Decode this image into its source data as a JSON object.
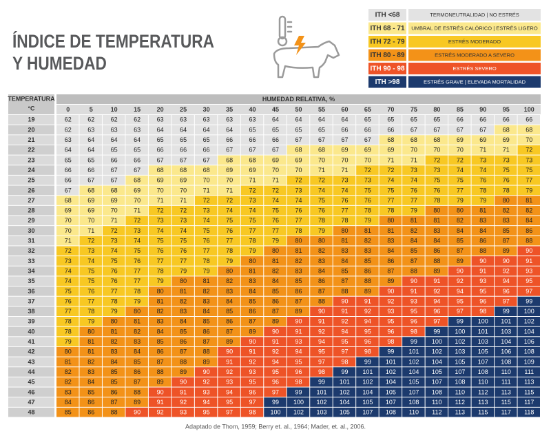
{
  "header": {
    "title_line1": "ÍNDICE DE TEMPERATURA",
    "title_line2": "Y HUMEDAD"
  },
  "legend": [
    {
      "label": "ITH <68",
      "description": "TERMONEUTRALIDAD | NO ESTRÉS",
      "color": "#e3e3e3"
    },
    {
      "label": "ITH 68 - 71",
      "description": "UMBRAL DE ESTRÉS CALÓRICO | ESTRÉS LIGERO",
      "color": "#fbe88c"
    },
    {
      "label": "ITH 72 - 79",
      "description": "ESTRÉS MODERADO",
      "color": "#f8c823"
    },
    {
      "label": "ITH 80 - 89",
      "description": "ESTRÉS MODERADO A SEVERO",
      "color": "#f39218"
    },
    {
      "label": "ITH 90 - 98",
      "description": "ESTRÉS SEVERO",
      "color": "#ee5327"
    },
    {
      "label": "ITH >98",
      "description": "ESTRÉS GRAVE | ELEVADA MORTALIDAD",
      "color": "#1c3a6d"
    }
  ],
  "table": {
    "row_header": "TEMPERATURA",
    "row_header_unit": "°C",
    "column_header": "HUMEDAD RELATIVA, %",
    "humidity": [
      0,
      5,
      10,
      15,
      20,
      25,
      30,
      35,
      40,
      45,
      50,
      55,
      60,
      65,
      70,
      75,
      80,
      85,
      90,
      95,
      100
    ],
    "rows": [
      {
        "temperature": 19,
        "values": [
          62,
          62,
          62,
          62,
          63,
          63,
          63,
          63,
          63,
          64,
          64,
          64,
          64,
          65,
          65,
          65,
          65,
          66,
          66,
          66,
          66
        ]
      },
      {
        "temperature": 20,
        "values": [
          62,
          63,
          63,
          63,
          64,
          64,
          64,
          64,
          65,
          65,
          65,
          65,
          66,
          66,
          66,
          67,
          67,
          67,
          67,
          68,
          68
        ]
      },
      {
        "temperature": 21,
        "values": [
          63,
          64,
          64,
          64,
          65,
          65,
          65,
          66,
          66,
          66,
          67,
          67,
          67,
          67,
          68,
          68,
          68,
          69,
          69,
          69,
          70
        ]
      },
      {
        "temperature": 22,
        "values": [
          64,
          64,
          65,
          65,
          66,
          66,
          66,
          67,
          67,
          67,
          68,
          68,
          69,
          69,
          69,
          70,
          70,
          70,
          71,
          71,
          72
        ]
      },
      {
        "temperature": 23,
        "values": [
          65,
          65,
          66,
          66,
          67,
          67,
          67,
          68,
          68,
          69,
          69,
          70,
          70,
          70,
          71,
          71,
          72,
          72,
          73,
          73,
          73
        ]
      },
      {
        "temperature": 24,
        "values": [
          66,
          66,
          67,
          67,
          68,
          68,
          68,
          69,
          69,
          70,
          70,
          71,
          71,
          72,
          72,
          73,
          73,
          74,
          74,
          75,
          75
        ]
      },
      {
        "temperature": 25,
        "values": [
          66,
          67,
          67,
          68,
          69,
          69,
          70,
          70,
          71,
          71,
          72,
          72,
          73,
          73,
          74,
          74,
          75,
          75,
          76,
          76,
          77
        ]
      },
      {
        "temperature": 26,
        "values": [
          67,
          68,
          68,
          69,
          70,
          70,
          71,
          71,
          72,
          72,
          73,
          74,
          74,
          75,
          75,
          76,
          76,
          77,
          78,
          78,
          79
        ]
      },
      {
        "temperature": 27,
        "values": [
          68,
          69,
          69,
          70,
          71,
          71,
          72,
          72,
          73,
          74,
          74,
          75,
          76,
          76,
          77,
          77,
          78,
          79,
          79,
          80,
          81
        ]
      },
      {
        "temperature": 28,
        "values": [
          69,
          69,
          70,
          71,
          72,
          72,
          73,
          74,
          74,
          75,
          76,
          76,
          77,
          78,
          78,
          79,
          80,
          80,
          81,
          82,
          82
        ]
      },
      {
        "temperature": 29,
        "values": [
          70,
          70,
          71,
          72,
          73,
          73,
          74,
          75,
          75,
          76,
          77,
          78,
          78,
          79,
          80,
          81,
          81,
          82,
          83,
          83,
          84
        ]
      },
      {
        "temperature": 30,
        "values": [
          70,
          71,
          72,
          73,
          74,
          74,
          75,
          76,
          77,
          77,
          78,
          79,
          80,
          81,
          81,
          82,
          83,
          84,
          84,
          85,
          86
        ]
      },
      {
        "temperature": 31,
        "values": [
          71,
          72,
          73,
          74,
          75,
          75,
          76,
          77,
          78,
          79,
          80,
          80,
          81,
          82,
          83,
          84,
          84,
          85,
          86,
          87,
          88
        ]
      },
      {
        "temperature": 32,
        "values": [
          72,
          73,
          74,
          75,
          76,
          76,
          77,
          78,
          79,
          80,
          81,
          82,
          83,
          83,
          84,
          85,
          86,
          87,
          88,
          89,
          90
        ]
      },
      {
        "temperature": 33,
        "values": [
          73,
          74,
          75,
          76,
          77,
          77,
          78,
          79,
          80,
          81,
          82,
          83,
          84,
          85,
          86,
          87,
          88,
          89,
          90,
          90,
          91
        ]
      },
      {
        "temperature": 34,
        "values": [
          74,
          75,
          76,
          77,
          78,
          79,
          79,
          80,
          81,
          82,
          83,
          84,
          85,
          86,
          87,
          88,
          89,
          90,
          91,
          92,
          93
        ]
      },
      {
        "temperature": 35,
        "values": [
          74,
          75,
          76,
          77,
          79,
          80,
          81,
          82,
          83,
          84,
          85,
          86,
          87,
          88,
          89,
          90,
          91,
          92,
          93,
          94,
          95
        ]
      },
      {
        "temperature": 36,
        "values": [
          75,
          76,
          77,
          78,
          80,
          81,
          82,
          83,
          84,
          85,
          86,
          87,
          88,
          89,
          90,
          91,
          92,
          94,
          95,
          96,
          97
        ]
      },
      {
        "temperature": 37,
        "values": [
          76,
          77,
          78,
          79,
          81,
          82,
          83,
          84,
          85,
          86,
          87,
          88,
          90,
          91,
          92,
          93,
          94,
          95,
          96,
          97,
          99
        ]
      },
      {
        "temperature": 38,
        "values": [
          77,
          78,
          79,
          80,
          82,
          83,
          84,
          85,
          86,
          87,
          89,
          90,
          91,
          92,
          93,
          95,
          96,
          97,
          98,
          99,
          100
        ]
      },
      {
        "temperature": 39,
        "values": [
          78,
          79,
          80,
          81,
          83,
          84,
          85,
          86,
          87,
          89,
          90,
          91,
          92,
          94,
          95,
          96,
          97,
          99,
          100,
          101,
          102
        ]
      },
      {
        "temperature": 40,
        "values": [
          78,
          80,
          81,
          82,
          84,
          85,
          86,
          87,
          89,
          90,
          91,
          92,
          94,
          95,
          96,
          98,
          99,
          100,
          101,
          103,
          104
        ]
      },
      {
        "temperature": 41,
        "values": [
          79,
          81,
          82,
          83,
          85,
          86,
          87,
          89,
          90,
          91,
          93,
          94,
          95,
          96,
          98,
          99,
          100,
          102,
          103,
          104,
          106
        ]
      },
      {
        "temperature": 42,
        "values": [
          80,
          81,
          83,
          84,
          86,
          87,
          88,
          90,
          91,
          92,
          94,
          95,
          97,
          98,
          99,
          101,
          102,
          103,
          105,
          106,
          108
        ]
      },
      {
        "temperature": 43,
        "values": [
          81,
          82,
          84,
          85,
          87,
          88,
          89,
          91,
          92,
          94,
          95,
          97,
          98,
          99,
          101,
          102,
          104,
          105,
          107,
          108,
          109
        ]
      },
      {
        "temperature": 44,
        "values": [
          82,
          83,
          85,
          86,
          88,
          89,
          90,
          92,
          93,
          95,
          96,
          98,
          99,
          101,
          102,
          104,
          105,
          107,
          108,
          110,
          111
        ]
      },
      {
        "temperature": 45,
        "values": [
          82,
          84,
          85,
          87,
          89,
          90,
          92,
          93,
          95,
          96,
          98,
          99,
          101,
          102,
          104,
          105,
          107,
          108,
          110,
          111,
          113
        ]
      },
      {
        "temperature": 46,
        "values": [
          83,
          85,
          86,
          88,
          90,
          91,
          93,
          94,
          96,
          97,
          99,
          101,
          102,
          104,
          105,
          107,
          108,
          110,
          112,
          113,
          115
        ]
      },
      {
        "temperature": 47,
        "values": [
          84,
          86,
          87,
          89,
          91,
          92,
          94,
          95,
          97,
          99,
          100,
          102,
          104,
          105,
          107,
          108,
          110,
          112,
          113,
          115,
          117
        ]
      },
      {
        "temperature": 48,
        "values": [
          85,
          86,
          88,
          90,
          92,
          93,
          95,
          97,
          98,
          100,
          102,
          103,
          105,
          107,
          108,
          110,
          112,
          113,
          115,
          117,
          118
        ]
      }
    ]
  },
  "source": "Adaptado de Thom, 1959; Berry et. al., 1964; Mader, et. al., 2006."
}
